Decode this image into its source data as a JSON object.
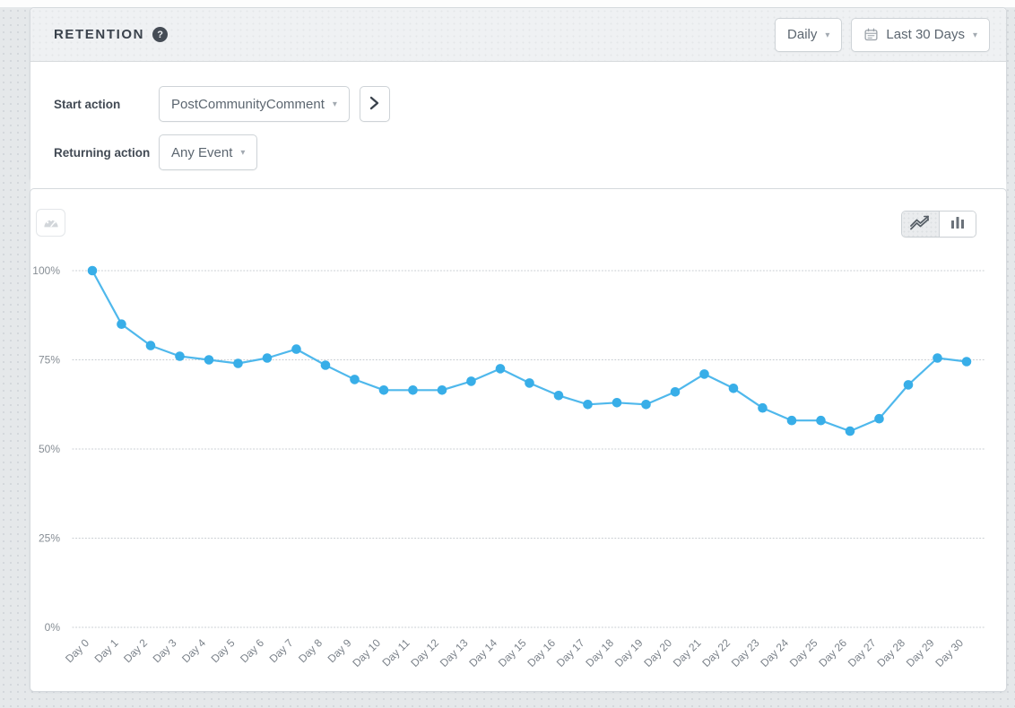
{
  "header": {
    "title": "RETENTION",
    "granularity": "Daily",
    "date_range": "Last 30 Days"
  },
  "icons": {
    "help": "?",
    "chevron_down": "▾"
  },
  "filters": {
    "start_label": "Start action",
    "start_value": "PostCommunityComment",
    "returning_label": "Returning action",
    "returning_value": "Any Event"
  },
  "colors": {
    "accent_blue": "#38aee8",
    "line_blue": "#4fb8ec",
    "page_bg": "#e5e8ea",
    "title_text": "#3a424c"
  },
  "chart_data": {
    "type": "line",
    "title": "",
    "xlabel": "",
    "ylabel": "",
    "ylim": [
      0,
      100
    ],
    "grid": "horizontal-dotted",
    "legend": "none",
    "x_tick_rotation": -45,
    "y_ticks": [
      {
        "label": "100%",
        "value": 100
      },
      {
        "label": "75%",
        "value": 75
      },
      {
        "label": "50%",
        "value": 50
      },
      {
        "label": "25%",
        "value": 25
      },
      {
        "label": "0%",
        "value": 0
      }
    ],
    "x_labels": [
      "Day 0",
      "Day 1",
      "Day 2",
      "Day 3",
      "Day 4",
      "Day 5",
      "Day 6",
      "Day 7",
      "Day 8",
      "Day 9",
      "Day 10",
      "Day 11",
      "Day 12",
      "Day 13",
      "Day 14",
      "Day 15",
      "Day 16",
      "Day 17",
      "Day 18",
      "Day 19",
      "Day 20",
      "Day 21",
      "Day 22",
      "Day 23",
      "Day 24",
      "Day 25",
      "Day 26",
      "Day 27",
      "Day 28",
      "Day 29",
      "Day 30"
    ],
    "series": [
      {
        "name": "Retention",
        "line_color": "#4fb8ec",
        "point_color": "#38aee8",
        "values": [
          100,
          85,
          79,
          76,
          75,
          74,
          75.5,
          78,
          73.5,
          69.5,
          66.5,
          66.5,
          66.5,
          69,
          72.5,
          68.5,
          65,
          62.5,
          63,
          62.5,
          66,
          71,
          67,
          61.5,
          58,
          58,
          55,
          58.5,
          68,
          75.5,
          74.5
        ]
      }
    ]
  }
}
